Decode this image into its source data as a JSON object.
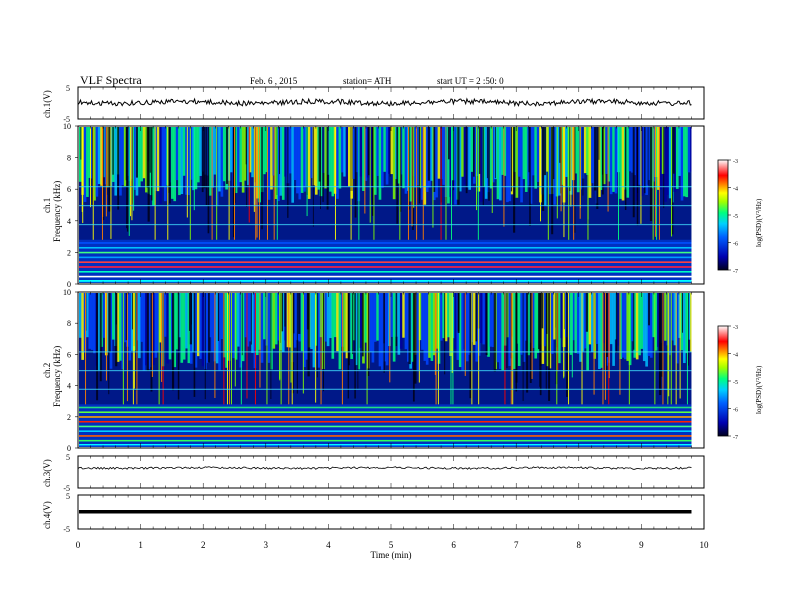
{
  "header": {
    "title": "VLF Spectra",
    "date": "Feb. 6  , 2015",
    "station": "station= ATH",
    "start": "start  UT  =   2  :50: 0"
  },
  "chart_data": [
    {
      "type": "line",
      "name_label": "ch.1(V)",
      "ylim": [
        -5,
        5
      ],
      "yticks": [
        "5",
        "-5"
      ],
      "baseline": 0.2,
      "note": "noisy trace near zero"
    },
    {
      "type": "heatmap",
      "ylabel": "ch.1\nFrequency (kHz)",
      "ylabel_lines": [
        "ch.1",
        "Frequency (kHz)"
      ],
      "ylim": [
        0,
        10
      ],
      "yticks": [
        "0",
        "2",
        "4",
        "6",
        "8",
        "10"
      ],
      "colorbar": {
        "label": "log(PSD)(V²/Hz)",
        "ticks": [
          "-3",
          "-4",
          "-5",
          "-6",
          "-7"
        ]
      }
    },
    {
      "type": "heatmap",
      "ylabel_lines": [
        "ch.2",
        "Frequency (kHz)"
      ],
      "ylim": [
        0,
        10
      ],
      "yticks": [
        "0",
        "2",
        "4",
        "6",
        "8",
        "10"
      ],
      "colorbar": {
        "label": "log(PSD)(V²/Hz)",
        "ticks": [
          "-3",
          "-4",
          "-5",
          "-6",
          "-7"
        ]
      }
    },
    {
      "type": "line",
      "name_label": "ch.3(V)",
      "ylim": [
        -5,
        5
      ],
      "yticks": [
        "5",
        "-5"
      ],
      "baseline": 0.0
    },
    {
      "type": "line",
      "name_label": "ch.4(V)",
      "ylim": [
        -5,
        5
      ],
      "yticks": [
        "5",
        "-5"
      ],
      "baseline": 0.0
    }
  ],
  "x_axis": {
    "label": "Time  (min)",
    "xlim": [
      0,
      10
    ],
    "ticks": [
      "0",
      "1",
      "2",
      "3",
      "4",
      "5",
      "6",
      "7",
      "8",
      "9",
      "10"
    ],
    "data_end": 9.8
  },
  "colors": {
    "scale": [
      "#000020",
      "#0000a0",
      "#0044ff",
      "#00c0ff",
      "#00ff80",
      "#80ff00",
      "#ffff00",
      "#ff8000",
      "#ff0000",
      "#ffffff"
    ]
  }
}
